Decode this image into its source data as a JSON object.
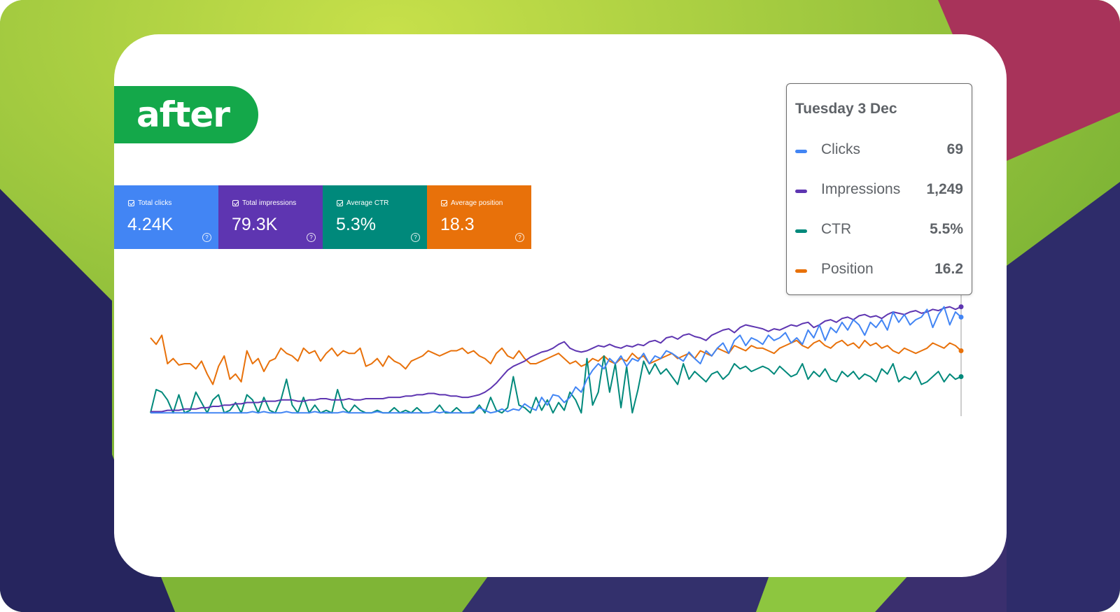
{
  "badge": {
    "label": "after"
  },
  "metrics": [
    {
      "label": "Total clicks",
      "value": "4.24K",
      "color": "#4285f4"
    },
    {
      "label": "Total impressions",
      "value": "79.3K",
      "color": "#5e35b1"
    },
    {
      "label": "Average CTR",
      "value": "5.3%",
      "color": "#00897b"
    },
    {
      "label": "Average position",
      "value": "18.3",
      "color": "#e8710a"
    }
  ],
  "tooltip": {
    "date": "Tuesday 3 Dec",
    "rows": [
      {
        "name": "Clicks",
        "value": "69",
        "color": "#4285f4"
      },
      {
        "name": "Impressions",
        "value": "1,249",
        "color": "#5e35b1"
      },
      {
        "name": "CTR",
        "value": "5.5%",
        "color": "#00897b"
      },
      {
        "name": "Position",
        "value": "16.2",
        "color": "#e8710a"
      }
    ]
  },
  "chart_data": {
    "type": "line",
    "series": [
      {
        "name": "Clicks",
        "color": "#4285f4",
        "values": [
          2,
          2,
          2,
          2,
          2,
          2,
          2,
          2,
          2,
          2,
          2,
          2,
          2,
          2,
          2,
          2,
          2,
          2,
          3,
          2,
          3,
          2,
          2,
          2,
          3,
          2,
          2,
          2,
          2,
          3,
          2,
          2,
          2,
          2,
          3,
          2,
          2,
          2,
          2,
          2,
          3,
          2,
          2,
          2,
          2,
          2,
          2,
          2,
          2,
          2,
          3,
          2,
          3,
          2,
          2,
          2,
          2,
          3,
          6,
          4,
          2,
          3,
          5,
          3,
          5,
          4,
          9,
          6,
          4,
          14,
          8,
          16,
          15,
          10,
          14,
          22,
          18,
          28,
          35,
          40,
          36,
          44,
          40,
          46,
          38,
          44,
          42,
          48,
          40,
          46,
          44,
          50,
          48,
          45,
          42,
          49,
          44,
          40,
          50,
          46,
          52,
          56,
          48,
          58,
          62,
          54,
          60,
          58,
          55,
          62,
          58,
          60,
          64,
          56,
          60,
          55,
          66,
          60,
          70,
          58,
          68,
          64,
          72,
          66,
          74,
          70,
          62,
          72,
          68,
          74,
          66,
          80,
          72,
          78,
          70,
          74,
          76,
          82,
          68,
          78,
          84,
          70,
          80,
          76
        ]
      },
      {
        "name": "Impressions",
        "color": "#5e35b1",
        "values": [
          3,
          3,
          3,
          4,
          4,
          4,
          5,
          5,
          5,
          6,
          6,
          7,
          7,
          8,
          8,
          9,
          9,
          10,
          10,
          10,
          11,
          11,
          11,
          12,
          12,
          12,
          11,
          11,
          12,
          12,
          13,
          13,
          12,
          12,
          12,
          13,
          12,
          12,
          13,
          13,
          13,
          13,
          14,
          14,
          14,
          15,
          15,
          16,
          16,
          17,
          17,
          16,
          16,
          15,
          15,
          14,
          14,
          15,
          16,
          18,
          21,
          25,
          30,
          35,
          38,
          40,
          42,
          45,
          47,
          49,
          50,
          52,
          55,
          57,
          52,
          50,
          49,
          50,
          52,
          54,
          53,
          55,
          53,
          52,
          54,
          53,
          55,
          54,
          57,
          58,
          56,
          60,
          61,
          59,
          62,
          63,
          61,
          60,
          58,
          62,
          64,
          66,
          67,
          64,
          68,
          70,
          69,
          68,
          67,
          65,
          67,
          66,
          68,
          70,
          69,
          71,
          72,
          68,
          70,
          73,
          74,
          72,
          75,
          76,
          74,
          77,
          78,
          76,
          77,
          75,
          78,
          80,
          79,
          78,
          80,
          81,
          79,
          80,
          82,
          81,
          83,
          84,
          82,
          84
        ]
      },
      {
        "name": "CTR",
        "color": "#00897b",
        "values": [
          2,
          20,
          18,
          12,
          2,
          16,
          2,
          4,
          18,
          10,
          2,
          12,
          16,
          2,
          4,
          10,
          2,
          16,
          12,
          2,
          14,
          4,
          2,
          12,
          28,
          8,
          2,
          14,
          2,
          8,
          2,
          4,
          2,
          20,
          6,
          2,
          8,
          4,
          2,
          2,
          4,
          2,
          2,
          6,
          2,
          4,
          2,
          6,
          2,
          2,
          3,
          8,
          2,
          2,
          6,
          2,
          2,
          2,
          8,
          2,
          14,
          4,
          2,
          6,
          30,
          8,
          6,
          2,
          14,
          4,
          12,
          2,
          10,
          4,
          18,
          12,
          2,
          44,
          8,
          18,
          46,
          18,
          40,
          6,
          38,
          2,
          20,
          42,
          32,
          40,
          32,
          36,
          30,
          24,
          40,
          28,
          34,
          30,
          26,
          32,
          34,
          28,
          32,
          40,
          36,
          38,
          34,
          36,
          38,
          36,
          32,
          38,
          34,
          30,
          32,
          40,
          28,
          34,
          30,
          36,
          28,
          26,
          34,
          30,
          34,
          28,
          32,
          30,
          26,
          36,
          32,
          40,
          26,
          30,
          28,
          34,
          24,
          26,
          30,
          34,
          26,
          32,
          28,
          30
        ]
      },
      {
        "name": "Position",
        "color": "#e8710a",
        "values": [
          60,
          55,
          62,
          40,
          44,
          39,
          40,
          40,
          36,
          42,
          32,
          24,
          38,
          46,
          28,
          32,
          26,
          50,
          40,
          44,
          34,
          42,
          44,
          52,
          48,
          46,
          42,
          52,
          48,
          50,
          42,
          48,
          52,
          46,
          50,
          48,
          48,
          52,
          38,
          40,
          44,
          38,
          46,
          42,
          40,
          36,
          42,
          44,
          46,
          50,
          48,
          46,
          48,
          50,
          50,
          52,
          48,
          50,
          46,
          44,
          40,
          48,
          52,
          46,
          44,
          50,
          44,
          40,
          40,
          42,
          44,
          46,
          48,
          44,
          40,
          42,
          38,
          40,
          44,
          42,
          46,
          42,
          40,
          44,
          42,
          48,
          44,
          46,
          40,
          42,
          44,
          46,
          48,
          44,
          46,
          48,
          44,
          50,
          48,
          46,
          52,
          50,
          48,
          54,
          52,
          50,
          54,
          52,
          52,
          50,
          48,
          52,
          54,
          56,
          58,
          54,
          52,
          56,
          58,
          54,
          52,
          56,
          58,
          54,
          56,
          52,
          58,
          54,
          56,
          52,
          54,
          50,
          48,
          52,
          50,
          48,
          50,
          52,
          56,
          54,
          52,
          56,
          54,
          50
        ]
      }
    ]
  }
}
